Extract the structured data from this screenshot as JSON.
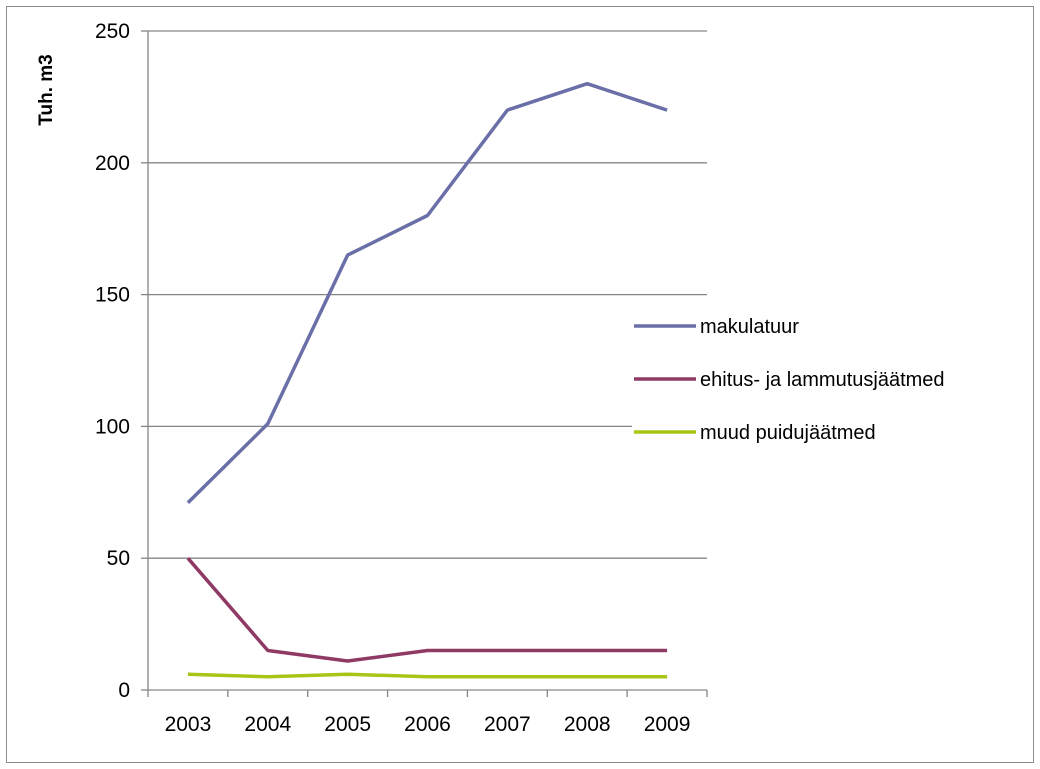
{
  "chart_data": {
    "type": "line",
    "ylabel": "Tuh. m3",
    "xlabel": "",
    "ylim": [
      0,
      250
    ],
    "yticks": [
      0,
      50,
      100,
      150,
      200,
      250
    ],
    "x": [
      "2003",
      "2004",
      "2005",
      "2006",
      "2007",
      "2008",
      "2009"
    ],
    "grid": "horizontal",
    "legend_position": "right",
    "series": [
      {
        "name": "makulatuur",
        "color": "#6b6fa8",
        "values": [
          71,
          101,
          165,
          180,
          220,
          230,
          220
        ]
      },
      {
        "name": "ehitus- ja lammutusjäätmed",
        "color": "#8f3a64",
        "values": [
          50,
          15,
          11,
          15,
          15,
          15,
          15
        ]
      },
      {
        "name": "muud puidujäätmed",
        "color": "#a6c516",
        "values": [
          6,
          5,
          6,
          5,
          5,
          5,
          5
        ]
      }
    ]
  }
}
